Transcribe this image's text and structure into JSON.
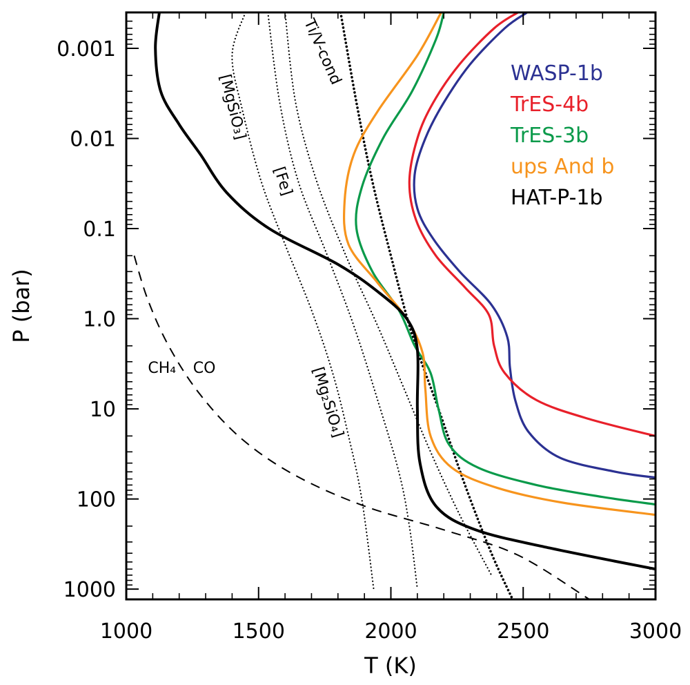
{
  "chart_data": {
    "type": "line",
    "title": "",
    "xlabel": "T (K)",
    "ylabel": "P (bar)",
    "x_scale": "linear",
    "y_scale": "log",
    "y_inverted": true,
    "xlim": [
      1000,
      3000
    ],
    "ylim": [
      0.0004,
      1300
    ],
    "x_ticks": [
      {
        "value": 1000,
        "label": "1000"
      },
      {
        "value": 1500,
        "label": "1500"
      },
      {
        "value": 2000,
        "label": "2000"
      },
      {
        "value": 2500,
        "label": "2500"
      },
      {
        "value": 3000,
        "label": "3000"
      }
    ],
    "y_ticks": [
      {
        "value": 0.001,
        "label": "0.001"
      },
      {
        "value": 0.01,
        "label": "0.01"
      },
      {
        "value": 0.1,
        "label": "0.1"
      },
      {
        "value": 1.0,
        "label": "1.0"
      },
      {
        "value": 10,
        "label": "10"
      },
      {
        "value": 100,
        "label": "100"
      },
      {
        "value": 1000,
        "label": "1000"
      }
    ],
    "legend_position": "top-right",
    "series": [
      {
        "name": "WASP-1b",
        "color": "#2b3192",
        "style": "solid",
        "points": [
          [
            2515,
            0.0004
          ],
          [
            2430,
            0.0006
          ],
          [
            2300,
            0.0015
          ],
          [
            2200,
            0.004
          ],
          [
            2130,
            0.01
          ],
          [
            2090,
            0.025
          ],
          [
            2100,
            0.06
          ],
          [
            2160,
            0.13
          ],
          [
            2260,
            0.3
          ],
          [
            2380,
            0.7
          ],
          [
            2440,
            1.6
          ],
          [
            2450,
            3.5
          ],
          [
            2470,
            8
          ],
          [
            2520,
            18
          ],
          [
            2640,
            35
          ],
          [
            2850,
            50
          ],
          [
            3000,
            58
          ]
        ]
      },
      {
        "name": "TrES-4b",
        "color": "#e8202a",
        "style": "solid",
        "points": [
          [
            2480,
            0.0004
          ],
          [
            2390,
            0.0006
          ],
          [
            2260,
            0.0015
          ],
          [
            2160,
            0.004
          ],
          [
            2100,
            0.01
          ],
          [
            2070,
            0.03
          ],
          [
            2095,
            0.08
          ],
          [
            2170,
            0.2
          ],
          [
            2280,
            0.45
          ],
          [
            2370,
            0.9
          ],
          [
            2390,
            2
          ],
          [
            2430,
            4
          ],
          [
            2550,
            8
          ],
          [
            2750,
            13
          ],
          [
            3000,
            20
          ]
        ]
      },
      {
        "name": "TrES-3b",
        "color": "#0a9a4a",
        "style": "solid",
        "points": [
          [
            2200,
            0.0004
          ],
          [
            2170,
            0.0008
          ],
          [
            2080,
            0.003
          ],
          [
            1970,
            0.01
          ],
          [
            1890,
            0.035
          ],
          [
            1870,
            0.1
          ],
          [
            1930,
            0.3
          ],
          [
            2030,
            0.8
          ],
          [
            2090,
            2
          ],
          [
            2150,
            4
          ],
          [
            2180,
            10
          ],
          [
            2220,
            25
          ],
          [
            2330,
            45
          ],
          [
            2550,
            70
          ],
          [
            2800,
            95
          ],
          [
            3000,
            115
          ]
        ]
      },
      {
        "name": "ups And b",
        "color": "#f7941d",
        "style": "solid",
        "points": [
          [
            2190,
            0.0004
          ],
          [
            2100,
            0.0012
          ],
          [
            1950,
            0.005
          ],
          [
            1860,
            0.015
          ],
          [
            1825,
            0.05
          ],
          [
            1840,
            0.15
          ],
          [
            1950,
            0.4
          ],
          [
            2060,
            1.0
          ],
          [
            2120,
            2.4
          ],
          [
            2130,
            6
          ],
          [
            2150,
            20
          ],
          [
            2230,
            45
          ],
          [
            2400,
            75
          ],
          [
            2650,
            110
          ],
          [
            3000,
            150
          ]
        ]
      },
      {
        "name": "HAT-P-1b",
        "color": "#000000",
        "style": "solid",
        "points": [
          [
            1125,
            0.0004
          ],
          [
            1110,
            0.001
          ],
          [
            1130,
            0.003
          ],
          [
            1200,
            0.007
          ],
          [
            1280,
            0.015
          ],
          [
            1380,
            0.04
          ],
          [
            1540,
            0.1
          ],
          [
            1800,
            0.25
          ],
          [
            1950,
            0.5
          ],
          [
            2060,
            1.0
          ],
          [
            2100,
            2.2
          ],
          [
            2100,
            10
          ],
          [
            2110,
            40
          ],
          [
            2170,
            120
          ],
          [
            2320,
            220
          ],
          [
            2600,
            350
          ],
          [
            3000,
            600
          ]
        ]
      }
    ],
    "reference_curves": [
      {
        "name": "MgSiO3",
        "style": "dotted",
        "points": [
          [
            1450,
            0.0004
          ],
          [
            1400,
            0.0012
          ],
          [
            1440,
            0.005
          ],
          [
            1510,
            0.03
          ],
          [
            1600,
            0.15
          ],
          [
            1700,
            0.8
          ],
          [
            1780,
            4
          ],
          [
            1840,
            20
          ],
          [
            1890,
            100
          ],
          [
            1935,
            1000
          ]
        ]
      },
      {
        "name": "Fe",
        "style": "dotted",
        "points": [
          [
            1535,
            0.0004
          ],
          [
            1580,
            0.004
          ],
          [
            1650,
            0.03
          ],
          [
            1760,
            0.2
          ],
          [
            1860,
            1.2
          ],
          [
            1950,
            8
          ],
          [
            2030,
            50
          ],
          [
            2070,
            200
          ],
          [
            2100,
            1000
          ]
        ]
      },
      {
        "name": "Mg2SiO4",
        "style": "dotted",
        "points": [
          [
            1600,
            0.0004
          ],
          [
            1640,
            0.004
          ],
          [
            1720,
            0.03
          ],
          [
            1830,
            0.2
          ],
          [
            1950,
            1.2
          ],
          [
            2050,
            6
          ],
          [
            2150,
            30
          ],
          [
            2260,
            150
          ],
          [
            2380,
            700
          ]
        ]
      },
      {
        "name": "Ti/V-cond",
        "style": "dotted-thick",
        "points": [
          [
            1810,
            0.0004
          ],
          [
            1870,
            0.004
          ],
          [
            1930,
            0.03
          ],
          [
            2000,
            0.2
          ],
          [
            2080,
            1.5
          ],
          [
            2180,
            10
          ],
          [
            2280,
            70
          ],
          [
            2380,
            400
          ],
          [
            2460,
            1300
          ]
        ]
      },
      {
        "name": "CH4/CO",
        "style": "dashed",
        "points": [
          [
            1030,
            0.2
          ],
          [
            1080,
            0.6
          ],
          [
            1160,
            2
          ],
          [
            1280,
            7
          ],
          [
            1440,
            22
          ],
          [
            1640,
            55
          ],
          [
            1900,
            120
          ],
          [
            2200,
            220
          ],
          [
            2480,
            420
          ],
          [
            2750,
            1300
          ]
        ]
      }
    ],
    "annotations": [
      {
        "text": "[MgSiO₃]",
        "sample_T": 1400,
        "sample_P": 0.0045,
        "rotate": 76
      },
      {
        "text": "[Fe]",
        "sample_T": 1590,
        "sample_P": 0.03,
        "rotate": 72
      },
      {
        "text": "Ti/V-cond",
        "sample_T": 1740,
        "sample_P": 0.0011,
        "rotate": 66
      },
      {
        "text": "[Mg₂SiO₄]",
        "sample_T": 1760,
        "sample_P": 8.5,
        "rotate": 73
      },
      {
        "text": "CH₄",
        "sample_T": 1135,
        "sample_P": 3.6,
        "rotate": 0
      },
      {
        "text": "CO",
        "sample_T": 1295,
        "sample_P": 3.6,
        "rotate": 0
      }
    ]
  }
}
